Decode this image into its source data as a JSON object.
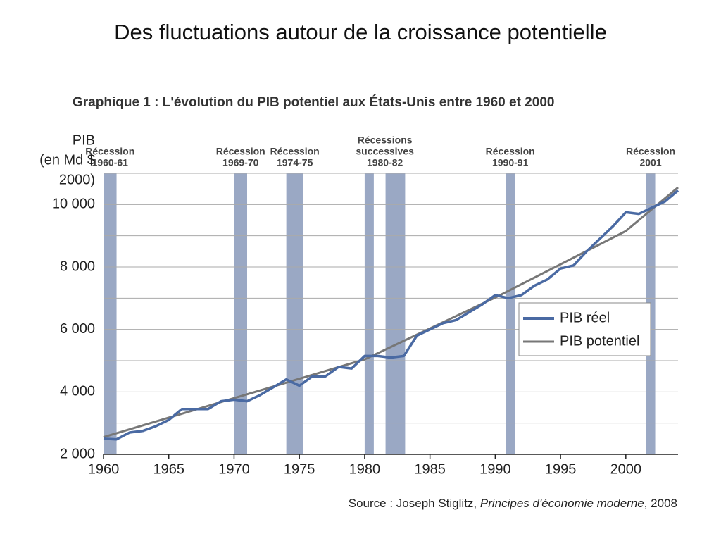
{
  "slide_title": "Des fluctuations autour de la croissance potentielle",
  "chart_data": {
    "type": "line",
    "title": "Graphique 1 : L'évolution du PIB potentiel aux États-Unis entre 1960 et 2000",
    "y_label": [
      "PIB",
      "(en Md $",
      "2000)"
    ],
    "xlim": [
      1960,
      2004
    ],
    "ylim": [
      2000,
      11000
    ],
    "xticks": [
      1960,
      1965,
      1970,
      1975,
      1980,
      1985,
      1990,
      1995,
      2000
    ],
    "yticks": [
      {
        "value": 2000,
        "label": "2 000"
      },
      {
        "value": 4000,
        "label": "4 000"
      },
      {
        "value": 6000,
        "label": "6 000"
      },
      {
        "value": 8000,
        "label": "8 000"
      },
      {
        "value": 10000,
        "label": "10 000"
      }
    ],
    "minor_gridlines": [
      3000,
      5000,
      7000,
      9000,
      11000
    ],
    "grid": true,
    "legend": "right",
    "recessions": [
      {
        "label": [
          "Récession",
          "1960-61"
        ],
        "periods": [
          [
            1960.0,
            1961.0
          ]
        ]
      },
      {
        "label": [
          "Récession",
          "1969-70"
        ],
        "periods": [
          [
            1970.0,
            1971.0
          ]
        ]
      },
      {
        "label": [
          "Récession",
          "1974-75"
        ],
        "periods": [
          [
            1974.0,
            1975.3
          ]
        ]
      },
      {
        "label": [
          "Récessions",
          "successives",
          "1980-82"
        ],
        "periods": [
          [
            1980.0,
            1980.7
          ],
          [
            1981.6,
            1983.1
          ]
        ]
      },
      {
        "label": [
          "Récession",
          "1990-91"
        ],
        "periods": [
          [
            1990.8,
            1991.5
          ]
        ]
      },
      {
        "label": [
          "Récession",
          "2001"
        ],
        "periods": [
          [
            2001.55,
            2002.25
          ]
        ]
      }
    ],
    "recession_color": "#9aa8c4",
    "series": [
      {
        "name": "PIB réel",
        "color": "#4a6aa3",
        "x": [
          1960,
          1961,
          1962,
          1963,
          1964,
          1965,
          1966,
          1967,
          1968,
          1969,
          1970,
          1971,
          1972,
          1973,
          1974,
          1975,
          1976,
          1977,
          1978,
          1979,
          1980,
          1981,
          1982,
          1983,
          1984,
          1985,
          1986,
          1987,
          1988,
          1989,
          1990,
          1991,
          1992,
          1993,
          1994,
          1995,
          1996,
          1997,
          1998,
          1999,
          2000,
          2001,
          2002,
          2003,
          2004
        ],
        "values": [
          2500,
          2480,
          2700,
          2750,
          2900,
          3100,
          3450,
          3450,
          3450,
          3700,
          3750,
          3700,
          3900,
          4150,
          4400,
          4200,
          4500,
          4500,
          4800,
          4750,
          5150,
          5150,
          5100,
          5150,
          5800,
          6000,
          6200,
          6300,
          6550,
          6800,
          7100,
          7000,
          7100,
          7400,
          7600,
          7950,
          8050,
          8500,
          8900,
          9300,
          9750,
          9700,
          9900,
          10100,
          10450
        ]
      },
      {
        "name": "PIB potentiel",
        "color": "#777777",
        "x": [
          1960,
          1970,
          1980,
          1990,
          2000,
          2004
        ],
        "values": [
          2550,
          3800,
          5040,
          7020,
          9150,
          10550
        ]
      }
    ],
    "source": {
      "prefix": "Source : Joseph Stiglitz, ",
      "italic": "Principes d'économie moderne",
      "suffix": ", 2008"
    }
  }
}
